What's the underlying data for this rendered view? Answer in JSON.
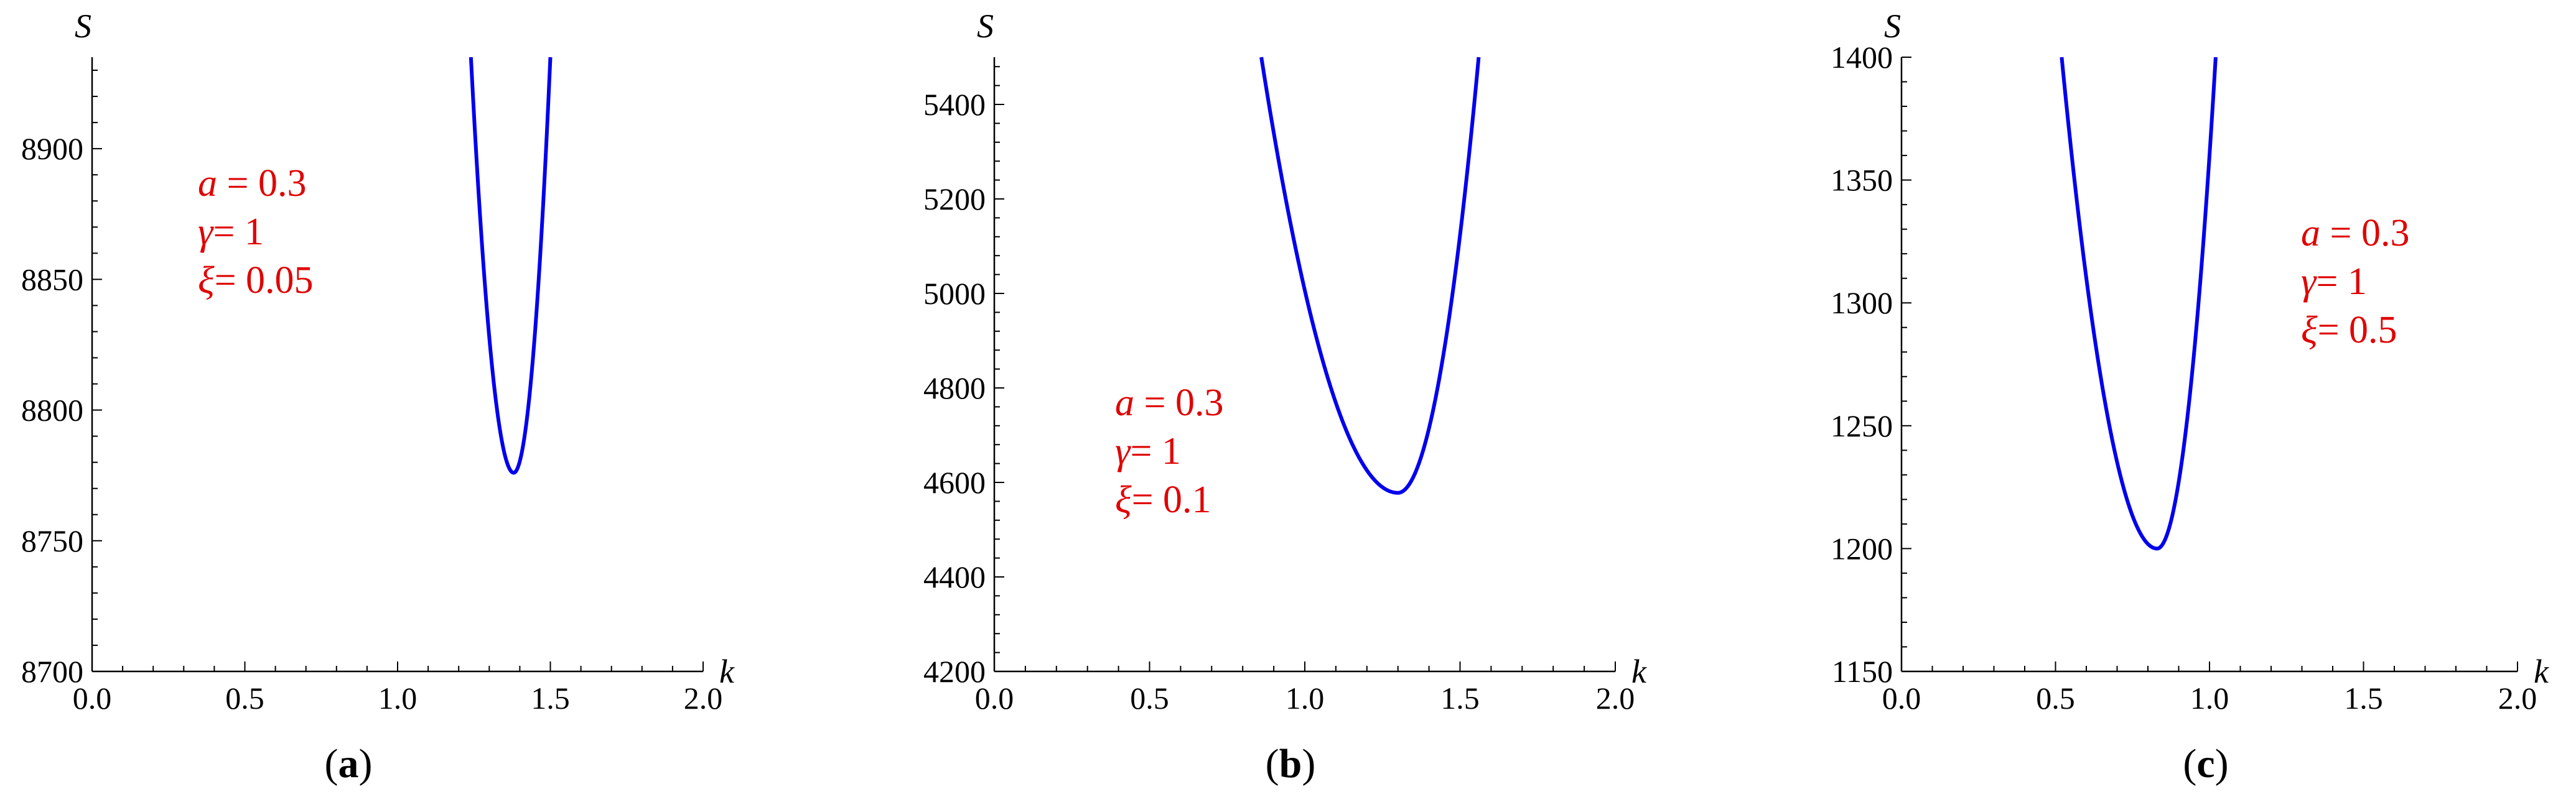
{
  "chart_data": [
    {
      "type": "line",
      "panel_label": "a",
      "xlabel": "k",
      "ylabel": "S",
      "xlim": [
        0,
        2
      ],
      "ylim": [
        8700,
        8935
      ],
      "xticks": [
        0.0,
        0.5,
        1.0,
        1.5,
        2.0
      ],
      "xtick_labels": [
        "0.0",
        "0.5",
        "1.0",
        "1.5",
        "2.0"
      ],
      "yticks": [
        8700,
        8750,
        8800,
        8850,
        8900
      ],
      "ytick_labels": [
        "8700",
        "8750",
        "8800",
        "8850",
        "8900"
      ],
      "grid": false,
      "curve": {
        "color": "#0000ee",
        "vertex": [
          1.38,
          8776
        ],
        "x_left_top": 1.24,
        "x_right_top": 1.5
      },
      "annotation": {
        "lines": [
          {
            "sym": "a",
            "rest": " = 0.3"
          },
          {
            "sym": "γ",
            "rest": "= 1"
          },
          {
            "sym": "ξ",
            "rest": "= 0.05"
          }
        ]
      }
    },
    {
      "type": "line",
      "panel_label": "b",
      "xlabel": "k",
      "ylabel": "S",
      "xlim": [
        0,
        2
      ],
      "ylim": [
        4200,
        5500
      ],
      "xticks": [
        0.0,
        0.5,
        1.0,
        1.5,
        2.0
      ],
      "xtick_labels": [
        "0.0",
        "0.5",
        "1.0",
        "1.5",
        "2.0"
      ],
      "yticks": [
        4200,
        4400,
        4600,
        4800,
        5000,
        5200,
        5400
      ],
      "ytick_labels": [
        "4200",
        "4400",
        "4600",
        "4800",
        "5000",
        "5200",
        "5400"
      ],
      "grid": false,
      "curve": {
        "color": "#0000ee",
        "vertex": [
          1.3,
          4578
        ],
        "x_left_top": 0.86,
        "x_right_top": 1.56
      },
      "annotation": {
        "lines": [
          {
            "sym": "a",
            "rest": " = 0.3"
          },
          {
            "sym": "γ",
            "rest": "= 1"
          },
          {
            "sym": "ξ",
            "rest": "= 0.1"
          }
        ]
      }
    },
    {
      "type": "line",
      "panel_label": "c",
      "xlabel": "k",
      "ylabel": "S",
      "xlim": [
        0,
        2
      ],
      "ylim": [
        1150,
        1400
      ],
      "xticks": [
        0.0,
        0.5,
        1.0,
        1.5,
        2.0
      ],
      "xtick_labels": [
        "0.0",
        "0.5",
        "1.0",
        "1.5",
        "2.0"
      ],
      "yticks": [
        1150,
        1200,
        1250,
        1300,
        1350,
        1400
      ],
      "ytick_labels": [
        "1150",
        "1200",
        "1250",
        "1300",
        "1350",
        "1400"
      ],
      "grid": false,
      "curve": {
        "color": "#0000ee",
        "vertex": [
          0.83,
          1200
        ],
        "x_left_top": 0.52,
        "x_right_top": 1.02
      },
      "annotation": {
        "lines": [
          {
            "sym": "a",
            "rest": " = 0.3"
          },
          {
            "sym": "γ",
            "rest": "= 1"
          },
          {
            "sym": "ξ",
            "rest": "= 0.5"
          }
        ]
      }
    }
  ]
}
